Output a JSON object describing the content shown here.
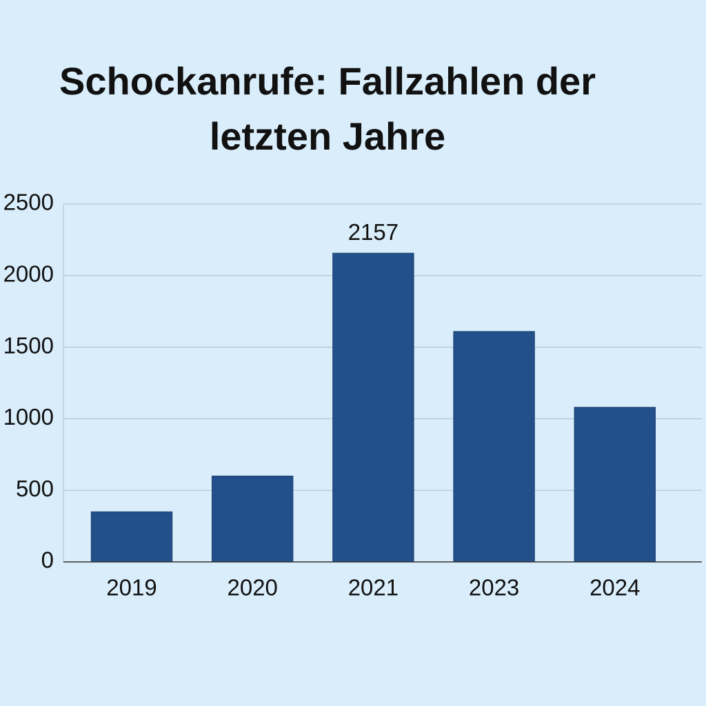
{
  "chart_data": {
    "type": "bar",
    "title": "Schockanrufe: Fallzahlen der letzten Jahre",
    "categories": [
      "2019",
      "2020",
      "2021",
      "2023",
      "2024"
    ],
    "values": [
      350,
      600,
      2157,
      1610,
      1080
    ],
    "value_labels": [
      null,
      null,
      "2157",
      null,
      null
    ],
    "color": "#22508a",
    "ylim": [
      0,
      2500
    ],
    "yticks": [
      0,
      500,
      1000,
      1500,
      2000,
      2500
    ],
    "grid": true
  }
}
